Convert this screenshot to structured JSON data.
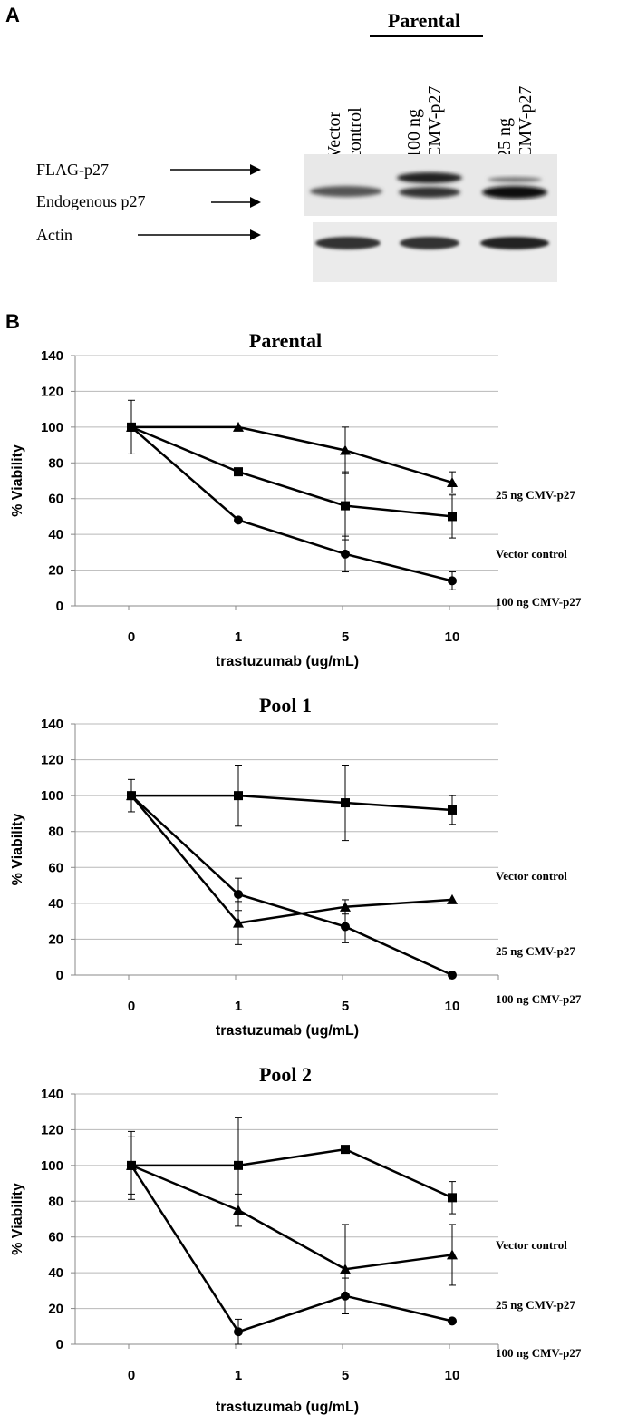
{
  "panel_a": {
    "letter": "A",
    "group_label": "Parental",
    "lanes": [
      "Vector control",
      "100 ng CMV-p27",
      "25 ng CMV-p27"
    ],
    "row_labels": [
      "FLAG-p27",
      "Endogenous p27",
      "Actin"
    ]
  },
  "panel_b": {
    "letter": "B"
  },
  "chart_data": [
    {
      "type": "line",
      "title": "Parental",
      "xlabel": "trastuzumab (ug/mL)",
      "ylabel": "% Viability",
      "categories": [
        "0",
        "1",
        "5",
        "10"
      ],
      "ylim": [
        0,
        140
      ],
      "yticks": [
        0,
        20,
        40,
        60,
        80,
        100,
        120,
        140
      ],
      "grid": true,
      "series": [
        {
          "name": "25 ng CMV-p27",
          "marker": "triangle",
          "values": [
            100,
            100,
            87,
            69
          ],
          "errors": [
            0,
            0,
            13,
            6
          ]
        },
        {
          "name": "Vector control",
          "marker": "square",
          "values": [
            100,
            75,
            56,
            50
          ],
          "errors": [
            15,
            0,
            19,
            12
          ]
        },
        {
          "name": "100 ng CMV-p27",
          "marker": "circle",
          "values": [
            100,
            48,
            29,
            14
          ],
          "errors": [
            0,
            0,
            10,
            5
          ]
        }
      ]
    },
    {
      "type": "line",
      "title": "Pool 1",
      "xlabel": "trastuzumab (ug/mL)",
      "ylabel": "% Viability",
      "categories": [
        "0",
        "1",
        "5",
        "10"
      ],
      "ylim": [
        0,
        140
      ],
      "yticks": [
        0,
        20,
        40,
        60,
        80,
        100,
        120,
        140
      ],
      "grid": true,
      "series": [
        {
          "name": "Vector control",
          "marker": "square",
          "values": [
            100,
            100,
            96,
            92
          ],
          "errors": [
            9,
            17,
            21,
            8
          ]
        },
        {
          "name": "25 ng CMV-p27",
          "marker": "triangle",
          "values": [
            100,
            29,
            38,
            42
          ],
          "errors": [
            0,
            12,
            4,
            0
          ]
        },
        {
          "name": "100 ng CMV-p27",
          "marker": "circle",
          "values": [
            100,
            45,
            27,
            0
          ],
          "errors": [
            0,
            9,
            9,
            0
          ]
        }
      ]
    },
    {
      "type": "line",
      "title": "Pool 2",
      "xlabel": "trastuzumab (ug/mL)",
      "ylabel": "% Viability",
      "categories": [
        "0",
        "1",
        "5",
        "10"
      ],
      "ylim": [
        0,
        140
      ],
      "yticks": [
        0,
        20,
        40,
        60,
        80,
        100,
        120,
        140
      ],
      "grid": true,
      "series": [
        {
          "name": "Vector control",
          "marker": "square",
          "values": [
            100,
            100,
            109,
            82
          ],
          "errors": [
            19,
            27,
            0,
            9
          ]
        },
        {
          "name": "25 ng CMV-p27",
          "marker": "triangle",
          "values": [
            100,
            75,
            42,
            50
          ],
          "errors": [
            16,
            9,
            25,
            17
          ]
        },
        {
          "name": "100 ng CMV-p27",
          "marker": "circle",
          "values": [
            100,
            7,
            27,
            13
          ],
          "errors": [
            0,
            7,
            10,
            0
          ]
        }
      ]
    }
  ]
}
